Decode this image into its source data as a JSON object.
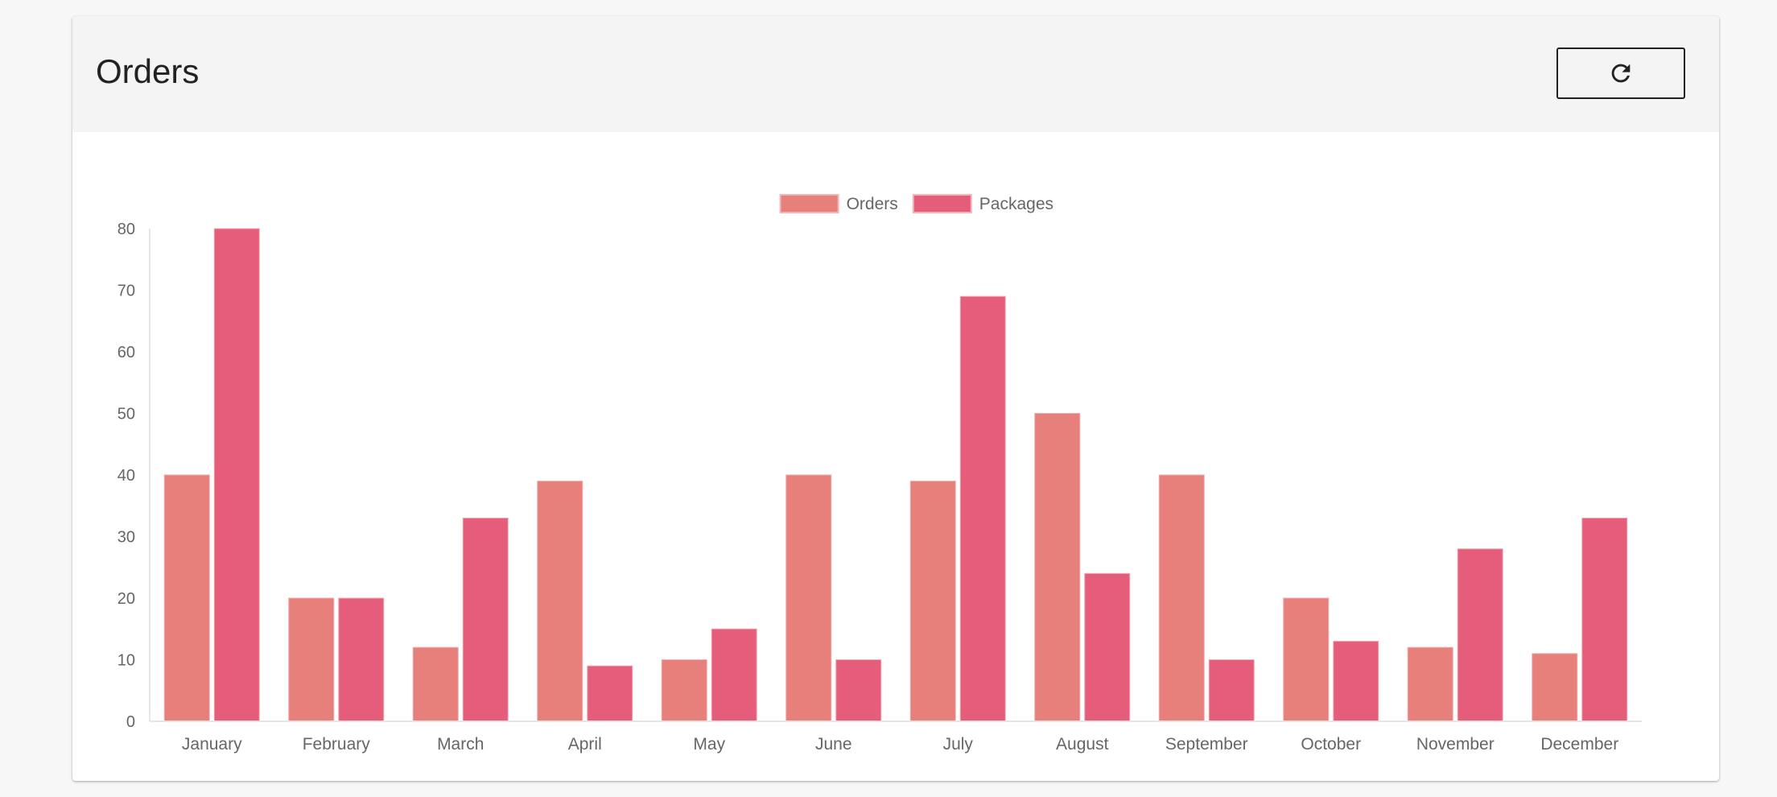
{
  "card": {
    "title": "Orders",
    "refresh_icon": "refresh-icon"
  },
  "chart_data": {
    "type": "bar",
    "title": "",
    "xlabel": "",
    "ylabel": "",
    "categories": [
      "January",
      "February",
      "March",
      "April",
      "May",
      "June",
      "July",
      "August",
      "September",
      "October",
      "November",
      "December"
    ],
    "series": [
      {
        "name": "Orders",
        "color": "#e77f7b",
        "values": [
          40,
          20,
          12,
          39,
          10,
          40,
          39,
          50,
          40,
          20,
          12,
          11
        ]
      },
      {
        "name": "Packages",
        "color": "#e65d7b",
        "values": [
          80,
          20,
          33,
          9,
          15,
          10,
          69,
          24,
          10,
          13,
          28,
          33
        ]
      }
    ],
    "ylim": [
      0,
      80
    ],
    "yticks": [
      0,
      10,
      20,
      30,
      40,
      50,
      60,
      70,
      80
    ],
    "grid": false,
    "legend_position": "top"
  }
}
